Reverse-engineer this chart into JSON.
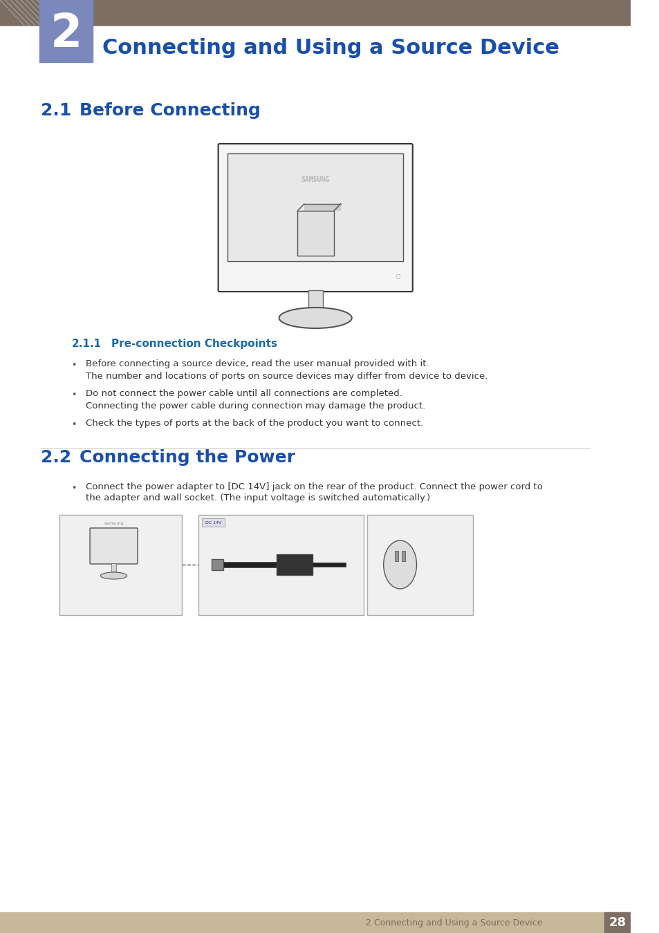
{
  "page_bg": "#ffffff",
  "header_bar_color": "#7d6e63",
  "header_stripe_color": "#8b9dc3",
  "header_num_bg": "#7b88bb",
  "header_number": "2",
  "header_title": "Connecting and Using a Source Device",
  "header_title_color": "#1a4faa",
  "section_21_num": "2.1",
  "section_21_title": "Before Connecting",
  "section_21_color": "#1a4faa",
  "section_211_num": "2.1.1",
  "section_211_title": "Pre-connection Checkpoints",
  "section_211_color": "#1a6aaa",
  "section_22_num": "2.2",
  "section_22_title": "Connecting the Power",
  "section_22_color": "#1a4faa",
  "bullet_color": "#555555",
  "body_text_color": "#333333",
  "body_font_size": 9.5,
  "bullets_211": [
    {
      "main": "Before connecting a source device, read the user manual provided with it.",
      "sub": "The number and locations of ports on source devices may differ from device to device."
    },
    {
      "main": "Do not connect the power cable until all connections are completed.",
      "sub": "Connecting the power cable during connection may damage the product."
    },
    {
      "main": "Check the types of ports at the back of the product you want to connect.",
      "sub": null
    }
  ],
  "bullets_22": [
    {
      "main": "Connect the power adapter to [DC 14V] jack on the rear of the product. Connect the power cord to the adapter and wall socket. (The input voltage is switched automatically.)",
      "sub": null
    }
  ],
  "footer_bg": "#c8b89a",
  "footer_text": "2 Connecting and Using a Source Device",
  "footer_page": "28",
  "footer_page_bg": "#7d6e63",
  "monitor_outline": "#333333",
  "diagonal_lines_color": "#cccccc"
}
